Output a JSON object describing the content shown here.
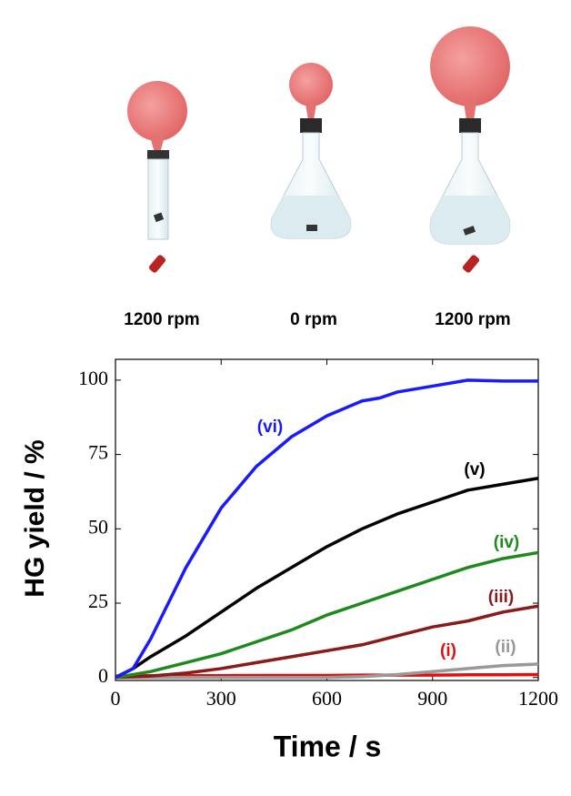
{
  "illustration": {
    "captions": [
      "1200 rpm",
      "0 rpm",
      "1200 rpm"
    ]
  },
  "chart_data": {
    "type": "line",
    "x_label": "Time / s",
    "y_label": "HG yield / %",
    "xlim": [
      0,
      1200
    ],
    "ylim": [
      -1,
      107
    ],
    "xticks": [
      0,
      300,
      600,
      900,
      1200
    ],
    "yticks": [
      0,
      25,
      50,
      75,
      100
    ],
    "series": [
      {
        "name": "(i)",
        "color": "#e01010",
        "x": [
          0,
          100,
          200,
          300,
          400,
          500,
          600,
          700,
          800,
          900,
          1000,
          1100,
          1200
        ],
        "values": [
          0.5,
          0.6,
          0.6,
          0.6,
          0.7,
          0.7,
          0.7,
          0.8,
          0.8,
          0.8,
          0.9,
          0.9,
          1
        ]
      },
      {
        "name": "(ii)",
        "color": "#999999",
        "x": [
          0,
          100,
          200,
          300,
          400,
          500,
          600,
          700,
          800,
          900,
          1000,
          1100,
          1200
        ],
        "values": [
          0,
          0,
          0,
          0,
          0,
          0,
          0,
          0.3,
          1,
          2,
          3,
          4,
          4.5
        ]
      },
      {
        "name": "(iii)",
        "color": "#8b1a1a",
        "x": [
          0,
          100,
          200,
          300,
          400,
          500,
          600,
          700,
          800,
          900,
          1000,
          1100,
          1200
        ],
        "values": [
          0,
          0.5,
          1.5,
          3,
          5,
          7,
          9,
          11,
          14,
          17,
          19,
          22,
          24
        ]
      },
      {
        "name": "(iv)",
        "color": "#1e8a1e",
        "x": [
          0,
          100,
          200,
          300,
          400,
          500,
          600,
          700,
          800,
          900,
          1000,
          1100,
          1200
        ],
        "values": [
          0,
          2,
          5,
          8,
          12,
          16,
          21,
          25,
          29,
          33,
          37,
          40,
          42
        ]
      },
      {
        "name": "(v)",
        "color": "#000000",
        "x": [
          0,
          50,
          100,
          200,
          300,
          400,
          500,
          600,
          700,
          800,
          900,
          1000,
          1100,
          1200
        ],
        "values": [
          0,
          3,
          7,
          14,
          22,
          30,
          37,
          44,
          50,
          55,
          59,
          63,
          65,
          67
        ]
      },
      {
        "name": "(vi)",
        "color": "#1a1aff",
        "x": [
          0,
          50,
          100,
          150,
          200,
          300,
          400,
          500,
          600,
          700,
          750,
          800,
          900,
          1000,
          1100,
          1200
        ],
        "values": [
          0,
          3,
          13,
          25,
          37,
          57,
          71,
          81,
          88,
          93,
          94,
          96,
          98,
          100,
          99.7,
          99.7
        ]
      }
    ]
  }
}
